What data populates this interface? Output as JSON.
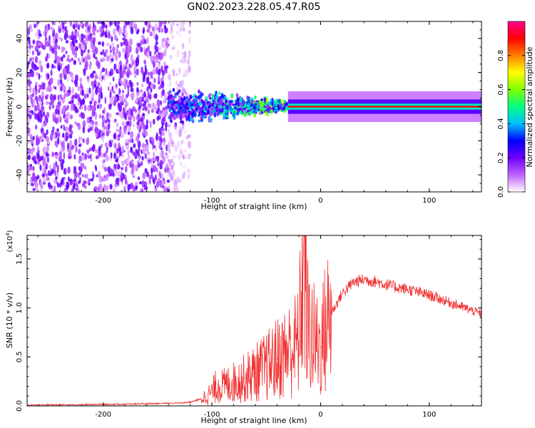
{
  "title": "GN02.2023.228.05.47.R05",
  "chart_data": [
    {
      "type": "heatmap",
      "xlabel": "Height of straight line (km)",
      "ylabel": "Frequency (Hz)",
      "xlim": [
        -270,
        148
      ],
      "ylim": [
        -50,
        50
      ],
      "x_ticks": [
        -200,
        -100,
        0,
        100
      ],
      "y_ticks": [
        -40,
        -20,
        0,
        20,
        40
      ],
      "x_tick_labels": [
        "-200",
        "-100",
        "0",
        "100"
      ],
      "y_tick_labels": [
        "-40",
        "-20",
        "0",
        "20",
        "40"
      ],
      "colorbar": {
        "label": "Normalized spectral amplitude",
        "range": [
          0,
          1
        ],
        "ticks": [
          0.0,
          0.2,
          0.4,
          0.6,
          0.8
        ],
        "tick_labels": [
          "0.0",
          "0.2",
          "0.4",
          "0.6",
          "0.8"
        ],
        "colors": [
          "#ffffff",
          "#c060ff",
          "#7000ff",
          "#0000ff",
          "#00c0ff",
          "#00ff80",
          "#80ff00",
          "#ffff00",
          "#ff8000",
          "#ff0000",
          "#ff0090"
        ]
      },
      "regions": [
        {
          "x_range": [
            -270,
            -140
          ],
          "freq_range": [
            -50,
            50
          ],
          "amplitude": 0.12,
          "texture": "noise"
        },
        {
          "x_range": [
            -140,
            -120
          ],
          "freq_range": [
            -50,
            50
          ],
          "amplitude": 0.04,
          "texture": "sparse-noise"
        },
        {
          "x_range": [
            -140,
            -30
          ],
          "freq_range": [
            -12,
            12
          ],
          "amplitude": 0.35,
          "texture": "scattered-signal"
        },
        {
          "x_range": [
            -30,
            148
          ],
          "freq_range": [
            -3,
            3
          ],
          "amplitude": 0.9,
          "texture": "carrier"
        }
      ],
      "grid": false,
      "grid_color": "#d0d0d0",
      "grid_style": "dashed"
    },
    {
      "type": "line",
      "series_color": "#f03030",
      "xlabel": "Height of straight line (km)",
      "ylabel": "SNR (10 * v/v)",
      "y_exponent_label": "(x10",
      "y_exponent": "4",
      "y_exponent_close": ")",
      "xlim": [
        -270,
        148
      ],
      "ylim": [
        0,
        17400
      ],
      "x_ticks": [
        -200,
        -100,
        0,
        100
      ],
      "y_ticks": [
        0,
        5000,
        10000,
        15000
      ],
      "x_tick_labels": [
        "-200",
        "-100",
        "0",
        "100"
      ],
      "y_tick_labels": [
        "0.0",
        "0.5",
        "1.0",
        "1.5"
      ],
      "x": [
        -270,
        -250,
        -230,
        -210,
        -190,
        -170,
        -150,
        -130,
        -120,
        -110,
        -100,
        -95,
        -90,
        -80,
        -70,
        -60,
        -50,
        -40,
        -30,
        -20,
        -15,
        -12,
        -10,
        -5,
        0,
        5,
        10,
        20,
        30,
        40,
        50,
        60,
        70,
        80,
        90,
        100,
        110,
        120,
        130,
        140,
        148
      ],
      "y": [
        60,
        120,
        100,
        150,
        160,
        200,
        220,
        300,
        380,
        700,
        1400,
        2200,
        2000,
        2400,
        2800,
        3400,
        4000,
        4800,
        5600,
        6500,
        17400,
        8200,
        7500,
        6500,
        6000,
        8200,
        9500,
        11500,
        12600,
        12900,
        12700,
        12400,
        12100,
        11900,
        11600,
        11300,
        10900,
        10500,
        10100,
        9700,
        9400
      ],
      "grid": false
    }
  ]
}
